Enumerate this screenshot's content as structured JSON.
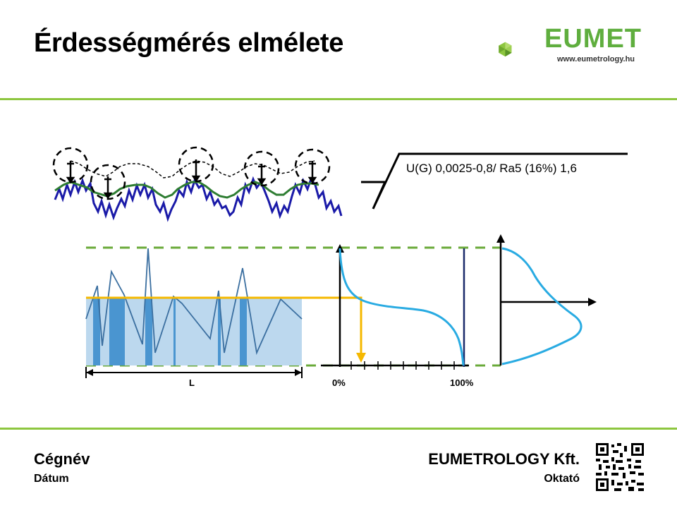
{
  "slide": {
    "title": "Érdességmérés elmélete"
  },
  "logo": {
    "name": "EUMET",
    "url": "www.eumetrology.hu",
    "brand_color": "#5fae3e"
  },
  "diagram": {
    "surface_symbol_text": "U(G) 0,0025-0,8/ Ra5 (16%) 1,6",
    "length_label": "L",
    "axis_start_label": "0%",
    "axis_end_label": "100%",
    "colors": {
      "profile": "#1a1aa8",
      "mean_line": "#2e7d32",
      "dashed_guides": "#6aaa3a",
      "material_curve": "#29abe2",
      "level_line": "#f5b800",
      "fill_light": "#bcd8ee",
      "fill_dark": "#4a95d0"
    }
  },
  "footer": {
    "company": "Cégnév",
    "date": "Dátum",
    "org": "EUMETROLOGY Kft.",
    "role": "Oktató"
  }
}
